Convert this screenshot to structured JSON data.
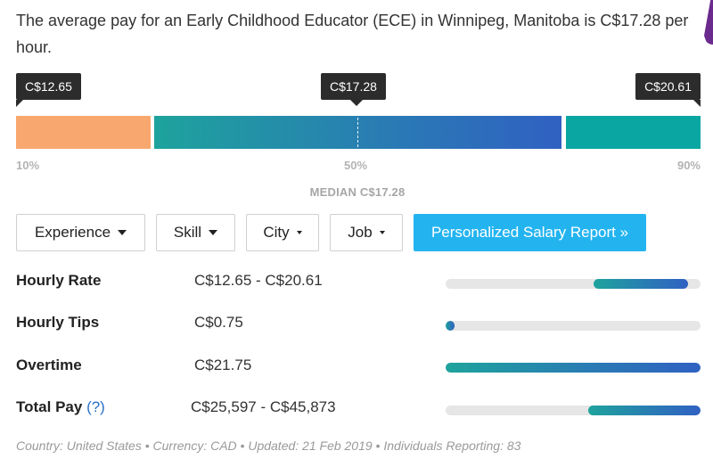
{
  "summary": "The average pay for an Early Childhood Educator (ECE) in Winnipeg, Manitoba is C$17.28 per hour.",
  "distribution": {
    "low_value": "C$12.65",
    "median_value": "C$17.28",
    "high_value": "C$20.61",
    "pct_10": "10%",
    "pct_50": "50%",
    "pct_90": "90%",
    "median_label": "MEDIAN C$17.28",
    "colors": {
      "low": "#f8a86e",
      "mid_start": "#1ea39d",
      "mid_end": "#3061c2",
      "high": "#0aa6a1"
    }
  },
  "filters": {
    "experience": "Experience",
    "skill": "Skill",
    "city": "City",
    "job": "Job",
    "report": "Personalized Salary Report »"
  },
  "rows": [
    {
      "label": "Hourly Rate",
      "value": "C$12.65 - C$20.61",
      "range_start": 0.58,
      "range_end": 0.95
    },
    {
      "label": "Hourly Tips",
      "value": "C$0.75",
      "range_start": 0.0,
      "range_end": 0.035
    },
    {
      "label": "Overtime",
      "value": "C$21.75",
      "range_start": 0.0,
      "range_end": 1.0
    },
    {
      "label": "Total Pay",
      "help": "(?)",
      "value": "C$25,597 - C$45,873",
      "range_start": 0.56,
      "range_end": 1.0
    }
  ],
  "footer": "Country: United States • Currency: CAD • Updated: 21 Feb 2019 • Individuals Reporting: 83"
}
